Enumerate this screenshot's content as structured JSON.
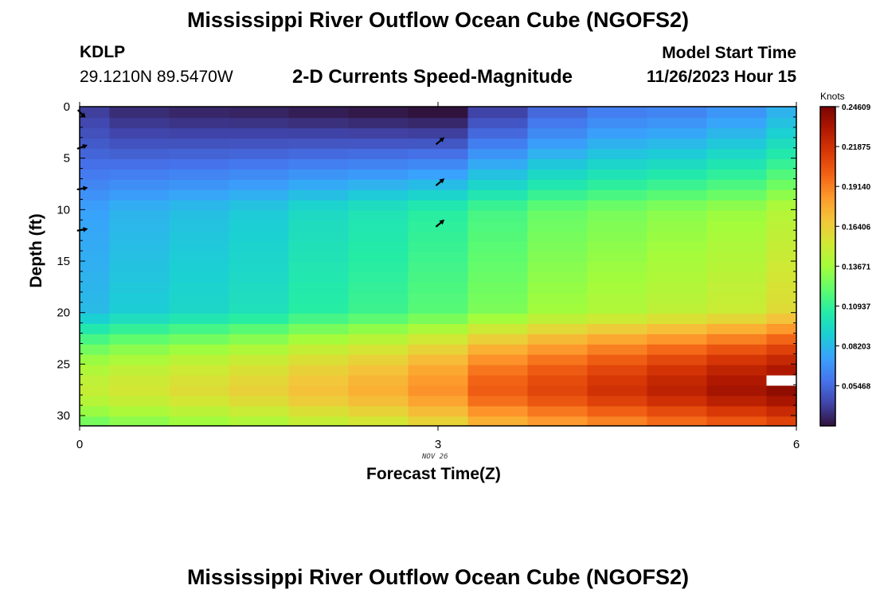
{
  "header": {
    "title": "Mississippi River Outflow Ocean Cube (NGOFS2)",
    "station_id": "KDLP",
    "station_coords": "29.1210N  89.5470W",
    "subtitle": "2-D Currents Speed-Magnitude",
    "model_label": "Model Start Time",
    "model_time": "11/26/2023 Hour 15"
  },
  "footer": {
    "title": "Mississippi River Outflow Ocean Cube (NGOFS2)"
  },
  "chart_data": {
    "type": "heatmap",
    "xlabel": "Forecast Time(Z)",
    "ylabel": "Depth (ft)",
    "date_label": "NOV 26",
    "x_ticks": [
      "0",
      "3",
      "6"
    ],
    "y_ticks": [
      "0",
      "5",
      "10",
      "15",
      "20",
      "25",
      "30"
    ],
    "xlim": [
      0,
      6
    ],
    "ylim": [
      0,
      31
    ],
    "times": [
      0,
      0.5,
      1,
      1.5,
      2,
      2.5,
      3,
      3.5,
      4,
      4.5,
      5,
      5.5,
      6
    ],
    "depth_bottoms": [
      1.1,
      2.1,
      3.1,
      4.1,
      5.1,
      6.1,
      7.1,
      8.1,
      9.1,
      10.1,
      11.1,
      12.1,
      13.1,
      14.1,
      15.1,
      16.1,
      17.1,
      18.1,
      19.1,
      20.1,
      21.1,
      22.1,
      23.1,
      24.1,
      25.1,
      26.1,
      27.1,
      28.1,
      29.1,
      30.1,
      31
    ],
    "speed_profiles_knots": {
      "surface": [
        0.04,
        0.034,
        0.032,
        0.031,
        0.029,
        0.027,
        0.025,
        0.04,
        0.052,
        0.06,
        0.062,
        0.068,
        0.078
      ],
      "mid": [
        0.074,
        0.08,
        0.084,
        0.088,
        0.095,
        0.1,
        0.106,
        0.114,
        0.122,
        0.126,
        0.13,
        0.134,
        0.142
      ],
      "near_bottom": [
        0.148,
        0.153,
        0.158,
        0.163,
        0.17,
        0.176,
        0.186,
        0.202,
        0.21,
        0.218,
        0.226,
        0.234,
        0.24
      ]
    },
    "missing_cell": {
      "time": 6,
      "depth": 27
    },
    "vectors": [
      {
        "time": 0,
        "depth": 0.5,
        "direction_deg": 135
      },
      {
        "time": 0,
        "depth": 4,
        "direction_deg": 70
      },
      {
        "time": 0,
        "depth": 8,
        "direction_deg": 80
      },
      {
        "time": 0,
        "depth": 12,
        "direction_deg": 80
      },
      {
        "time": 3,
        "depth": 3.5,
        "direction_deg": 50
      },
      {
        "time": 3,
        "depth": 7.5,
        "direction_deg": 50
      },
      {
        "time": 3,
        "depth": 11.5,
        "direction_deg": 50
      }
    ],
    "colorbar": {
      "title": "Knots",
      "min": 0.0272,
      "max": 0.2461,
      "labels": [
        "0.24609",
        "0.21875",
        "0.19140",
        "0.16406",
        "0.13671",
        "0.10937",
        "0.08203",
        "0.05468"
      ],
      "label_values": [
        0.24609,
        0.21875,
        0.1914,
        0.16406,
        0.13671,
        0.10937,
        0.08203,
        0.05468
      ],
      "colormap": [
        "#30123b",
        "#4145ab",
        "#4675ed",
        "#39a2fc",
        "#1bcfd4",
        "#24eca6",
        "#61fc6c",
        "#a4fc3b",
        "#d1e834",
        "#f3c63a",
        "#fe9b2d",
        "#f36315",
        "#d93806",
        "#b11901",
        "#7a0403"
      ]
    }
  }
}
